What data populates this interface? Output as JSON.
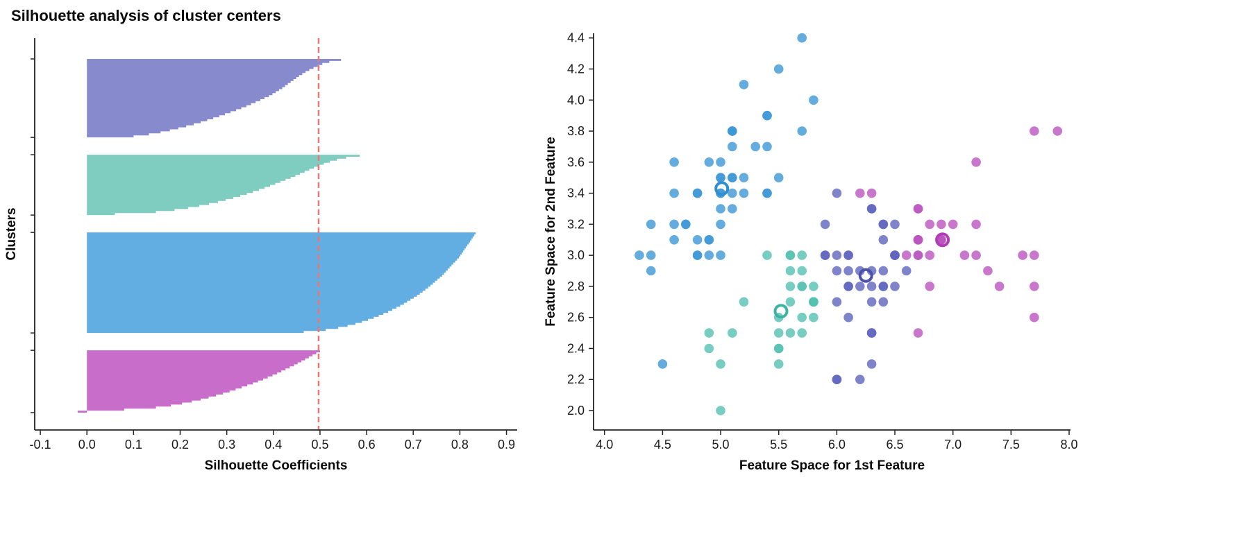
{
  "title": "Silhouette analysis of cluster centers",
  "colors": {
    "background": "#ffffff",
    "axis": "#222222",
    "avg_line": "#e97777"
  },
  "chart_data": [
    {
      "type": "area",
      "subtype": "silhouette",
      "xlabel": "Silhouette Coefficients",
      "ylabel": "Clusters",
      "x_ticks": [
        -0.1,
        0.0,
        0.1,
        0.2,
        0.3,
        0.4,
        0.5,
        0.6,
        0.7,
        0.8,
        0.9
      ],
      "xlim": [
        -0.112,
        0.923
      ],
      "grid": false,
      "legend": false,
      "avg_silhouette": 0.497,
      "avg_line_color": "#e97777",
      "clusters": [
        {
          "name": "purple",
          "color": "#7d80c8",
          "values": [
            0.545,
            0.52,
            0.505,
            0.495,
            0.486,
            0.477,
            0.469,
            0.462,
            0.455,
            0.449,
            0.443,
            0.437,
            0.431,
            0.425,
            0.419,
            0.412,
            0.405,
            0.398,
            0.39,
            0.381,
            0.372,
            0.362,
            0.352,
            0.342,
            0.331,
            0.32,
            0.308,
            0.296,
            0.284,
            0.271,
            0.258,
            0.244,
            0.229,
            0.213,
            0.196,
            0.178,
            0.158,
            0.133,
            0.1
          ]
        },
        {
          "name": "teal",
          "color": "#74c8bc",
          "values": [
            0.585,
            0.556,
            0.536,
            0.521,
            0.508,
            0.497,
            0.487,
            0.477,
            0.467,
            0.457,
            0.447,
            0.437,
            0.426,
            0.415,
            0.404,
            0.393,
            0.381,
            0.369,
            0.356,
            0.343,
            0.329,
            0.314,
            0.298,
            0.281,
            0.262,
            0.241,
            0.217,
            0.188,
            0.148,
            0.06
          ]
        },
        {
          "name": "blue",
          "color": "#55a7e0",
          "values": [
            0.834,
            0.831,
            0.828,
            0.825,
            0.822,
            0.819,
            0.816,
            0.813,
            0.81,
            0.807,
            0.804,
            0.801,
            0.798,
            0.794,
            0.79,
            0.786,
            0.782,
            0.778,
            0.774,
            0.77,
            0.766,
            0.762,
            0.757,
            0.752,
            0.747,
            0.742,
            0.737,
            0.732,
            0.726,
            0.72,
            0.714,
            0.708,
            0.701,
            0.694,
            0.687,
            0.68,
            0.672,
            0.664,
            0.655,
            0.646,
            0.636,
            0.626,
            0.615,
            0.603,
            0.59,
            0.576,
            0.559,
            0.539,
            0.512,
            0.465
          ]
        },
        {
          "name": "magenta",
          "color": "#c362c5",
          "values": [
            0.5,
            0.492,
            0.484,
            0.476,
            0.468,
            0.46,
            0.452,
            0.444,
            0.435,
            0.426,
            0.417,
            0.408,
            0.398,
            0.388,
            0.378,
            0.367,
            0.356,
            0.344,
            0.332,
            0.319,
            0.306,
            0.292,
            0.277,
            0.261,
            0.244,
            0.225,
            0.204,
            0.18,
            0.148,
            0.08,
            -0.02
          ]
        }
      ]
    },
    {
      "type": "scatter",
      "xlabel": "Feature Space for 1st Feature",
      "ylabel": "Feature Space for 2nd Feature",
      "x_ticks": [
        4.0,
        4.5,
        5.0,
        5.5,
        6.0,
        6.5,
        7.0,
        7.5,
        8.0
      ],
      "y_ticks": [
        2.0,
        2.2,
        2.4,
        2.6,
        2.8,
        3.0,
        3.2,
        3.4,
        3.6,
        3.8,
        4.0,
        4.2,
        4.4
      ],
      "xlim": [
        3.906,
        8.012
      ],
      "ylim": [
        1.875,
        4.43
      ],
      "grid": false,
      "legend": false,
      "point_radius": 6.8,
      "point_opacity": 0.8,
      "center_marker": {
        "radius": 8.5,
        "stroke_width": 4
      },
      "series": [
        {
          "name": "cluster-blue",
          "color": "#3d97d6",
          "ring_color": "#2f8ecf",
          "center": [
            5.01,
            3.43
          ],
          "points": [
            [
              5.1,
              3.5
            ],
            [
              4.9,
              3.0
            ],
            [
              4.7,
              3.2
            ],
            [
              4.6,
              3.1
            ],
            [
              5.0,
              3.6
            ],
            [
              5.4,
              3.9
            ],
            [
              4.6,
              3.4
            ],
            [
              5.0,
              3.4
            ],
            [
              4.4,
              2.9
            ],
            [
              4.9,
              3.1
            ],
            [
              5.4,
              3.7
            ],
            [
              4.8,
              3.4
            ],
            [
              4.8,
              3.0
            ],
            [
              4.3,
              3.0
            ],
            [
              5.8,
              4.0
            ],
            [
              5.7,
              4.4
            ],
            [
              5.4,
              3.9
            ],
            [
              5.1,
              3.5
            ],
            [
              5.7,
              3.8
            ],
            [
              5.1,
              3.8
            ],
            [
              5.4,
              3.4
            ],
            [
              5.1,
              3.7
            ],
            [
              4.6,
              3.6
            ],
            [
              5.1,
              3.3
            ],
            [
              4.8,
              3.4
            ],
            [
              5.0,
              3.0
            ],
            [
              5.0,
              3.4
            ],
            [
              5.2,
              3.5
            ],
            [
              5.2,
              3.4
            ],
            [
              4.7,
              3.2
            ],
            [
              4.8,
              3.1
            ],
            [
              5.4,
              3.4
            ],
            [
              5.2,
              4.1
            ],
            [
              5.5,
              4.2
            ],
            [
              4.9,
              3.1
            ],
            [
              5.0,
              3.2
            ],
            [
              5.5,
              3.5
            ],
            [
              4.9,
              3.6
            ],
            [
              4.4,
              3.0
            ],
            [
              5.1,
              3.4
            ],
            [
              5.0,
              3.5
            ],
            [
              4.5,
              2.3
            ],
            [
              4.4,
              3.2
            ],
            [
              5.0,
              3.5
            ],
            [
              5.1,
              3.8
            ],
            [
              4.8,
              3.0
            ],
            [
              5.1,
              3.8
            ],
            [
              4.6,
              3.2
            ],
            [
              5.3,
              3.7
            ],
            [
              5.0,
              3.3
            ]
          ]
        },
        {
          "name": "cluster-teal",
          "color": "#55c0b2",
          "ring_color": "#3db3a1",
          "center": [
            5.52,
            2.64
          ],
          "points": [
            [
              5.5,
              2.3
            ],
            [
              5.7,
              2.8
            ],
            [
              4.9,
              2.4
            ],
            [
              5.2,
              2.7
            ],
            [
              5.0,
              2.0
            ],
            [
              5.6,
              2.9
            ],
            [
              5.6,
              3.0
            ],
            [
              5.8,
              2.7
            ],
            [
              5.6,
              2.5
            ],
            [
              5.7,
              2.6
            ],
            [
              5.5,
              2.4
            ],
            [
              5.5,
              2.4
            ],
            [
              5.8,
              2.7
            ],
            [
              5.4,
              3.0
            ],
            [
              5.6,
              3.0
            ],
            [
              5.5,
              2.5
            ],
            [
              5.5,
              2.6
            ],
            [
              5.8,
              2.6
            ],
            [
              5.0,
              2.3
            ],
            [
              5.6,
              2.7
            ],
            [
              5.7,
              3.0
            ],
            [
              5.7,
              2.9
            ],
            [
              5.1,
              2.5
            ],
            [
              5.7,
              2.8
            ],
            [
              5.8,
              2.7
            ],
            [
              4.9,
              2.5
            ],
            [
              5.7,
              2.5
            ],
            [
              5.8,
              2.8
            ],
            [
              5.6,
              2.8
            ],
            [
              5.8,
              2.7
            ]
          ]
        },
        {
          "name": "cluster-purple",
          "color": "#5f65bd",
          "ring_color": "#4a51a8",
          "center": [
            6.25,
            2.87
          ],
          "points": [
            [
              6.4,
              3.2
            ],
            [
              6.5,
              2.8
            ],
            [
              6.3,
              3.3
            ],
            [
              6.6,
              2.9
            ],
            [
              5.9,
              3.0
            ],
            [
              6.0,
              2.2
            ],
            [
              6.1,
              2.9
            ],
            [
              6.2,
              2.2
            ],
            [
              5.9,
              3.2
            ],
            [
              6.1,
              2.8
            ],
            [
              6.3,
              2.5
            ],
            [
              6.1,
              2.8
            ],
            [
              6.4,
              2.9
            ],
            [
              6.0,
              2.9
            ],
            [
              6.0,
              2.7
            ],
            [
              6.0,
              3.4
            ],
            [
              6.3,
              2.3
            ],
            [
              6.1,
              3.0
            ],
            [
              6.2,
              2.9
            ],
            [
              6.3,
              3.3
            ],
            [
              6.3,
              2.9
            ],
            [
              6.5,
              3.0
            ],
            [
              6.5,
              3.2
            ],
            [
              6.4,
              2.7
            ],
            [
              6.4,
              3.2
            ],
            [
              6.5,
              3.0
            ],
            [
              6.0,
              2.2
            ],
            [
              6.3,
              2.7
            ],
            [
              6.2,
              2.8
            ],
            [
              6.1,
              3.0
            ],
            [
              6.4,
              2.8
            ],
            [
              6.4,
              2.8
            ],
            [
              6.3,
              2.8
            ],
            [
              6.1,
              2.6
            ],
            [
              6.4,
              3.1
            ],
            [
              6.0,
              3.0
            ],
            [
              6.3,
              2.5
            ],
            [
              6.5,
              3.0
            ],
            [
              5.9,
              3.0
            ]
          ]
        },
        {
          "name": "cluster-magenta",
          "color": "#ba55c0",
          "ring_color": "#b23cb5",
          "center": [
            6.91,
            3.1
          ],
          "points": [
            [
              7.0,
              3.2
            ],
            [
              6.9,
              3.1
            ],
            [
              6.7,
              3.1
            ],
            [
              6.6,
              3.0
            ],
            [
              6.8,
              2.8
            ],
            [
              6.7,
              3.0
            ],
            [
              6.7,
              3.1
            ],
            [
              7.1,
              3.0
            ],
            [
              7.6,
              3.0
            ],
            [
              7.3,
              2.9
            ],
            [
              6.7,
              2.5
            ],
            [
              7.2,
              3.6
            ],
            [
              6.8,
              3.0
            ],
            [
              7.7,
              3.8
            ],
            [
              7.7,
              2.6
            ],
            [
              6.9,
              3.2
            ],
            [
              7.7,
              2.8
            ],
            [
              6.7,
              3.3
            ],
            [
              7.2,
              3.2
            ],
            [
              7.2,
              3.0
            ],
            [
              7.4,
              2.8
            ],
            [
              7.9,
              3.8
            ],
            [
              7.7,
              3.0
            ],
            [
              6.3,
              3.4
            ],
            [
              6.9,
              3.1
            ],
            [
              6.9,
              3.1
            ],
            [
              6.7,
              3.1
            ],
            [
              6.8,
              3.2
            ],
            [
              6.7,
              3.3
            ],
            [
              6.7,
              3.0
            ],
            [
              6.2,
              3.4
            ]
          ]
        }
      ]
    }
  ]
}
